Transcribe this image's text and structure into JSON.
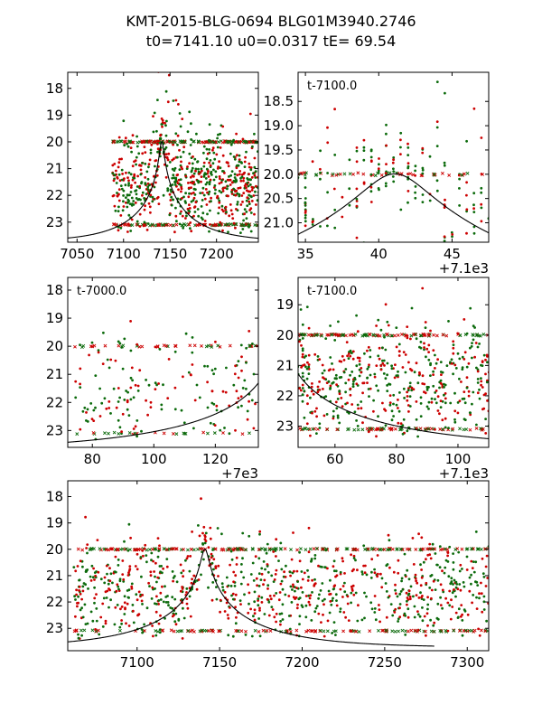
{
  "title": {
    "line1": "KMT-2015-BLG-0694 BLG01M3940.2746",
    "line2": "t0=7141.10 u0=0.0317 tE=  69.54"
  },
  "event": {
    "t0": 7141.1,
    "u0": 0.0317,
    "tE": 69.54,
    "base_mag": 23.74
  },
  "colors": {
    "red": "#cc0000",
    "green": "#0b6a0b",
    "model": "#000000"
  },
  "chart_data": [
    {
      "id": "panel-full-top",
      "type": "scatter",
      "xlim": [
        7040,
        7245
      ],
      "ylim": [
        23.75,
        17.4
      ],
      "xticks": [
        7050,
        7100,
        7150,
        7200
      ],
      "xtick_labels": [
        "7050",
        "7100",
        "7150",
        "7200"
      ],
      "yticks": [
        18,
        19,
        20,
        21,
        22,
        23
      ],
      "ytick_labels": [
        "18",
        "19",
        "20",
        "21",
        "22",
        "23"
      ],
      "annotation": "",
      "offset_label": "",
      "data_xrange": [
        7088,
        7245
      ],
      "peak_mag": 19.6,
      "n_points": 700
    },
    {
      "id": "panel-peak-zoom",
      "type": "scatter",
      "xlim": [
        34.5,
        47.5
      ],
      "ylim": [
        21.4,
        17.9
      ],
      "xticks": [
        35,
        40,
        45
      ],
      "xtick_labels": [
        "35",
        "40",
        "45"
      ],
      "yticks": [
        18.5,
        19.0,
        19.5,
        20.0,
        20.5,
        21.0
      ],
      "ytick_labels": [
        "18.5",
        "19.0",
        "19.5",
        "20.0",
        "20.5",
        "21.0"
      ],
      "annotation": "t-7100.0",
      "offset_label": "+7.1e3",
      "data_xrange": [
        34.5,
        47.5
      ],
      "peak_mag": 20.0,
      "n_points": 200
    },
    {
      "id": "panel-early",
      "type": "scatter",
      "xlim": [
        72,
        134
      ],
      "ylim": [
        23.6,
        17.55
      ],
      "xticks": [
        80,
        100,
        120
      ],
      "xtick_labels": [
        "80",
        "100",
        "120"
      ],
      "yticks": [
        18,
        19,
        20,
        21,
        22,
        23
      ],
      "ytick_labels": [
        "18",
        "19",
        "20",
        "21",
        "22",
        "23"
      ],
      "annotation": "t-7000.0",
      "offset_label": "+7e3",
      "data_xrange": [
        74,
        134
      ],
      "peak_mag": 21.4,
      "n_points": 170
    },
    {
      "id": "panel-late",
      "type": "scatter",
      "xlim": [
        48,
        110
      ],
      "ylim": [
        23.7,
        18.1
      ],
      "xticks": [
        60,
        80,
        100
      ],
      "xtick_labels": [
        "60",
        "80",
        "100"
      ],
      "yticks": [
        19,
        20,
        21,
        22,
        23
      ],
      "ytick_labels": [
        "19",
        "20",
        "21",
        "22",
        "23"
      ],
      "annotation": "t-7100.0",
      "offset_label": "+7.1e3",
      "data_xrange": [
        48,
        110
      ],
      "peak_mag": 20.9,
      "n_points": 500
    },
    {
      "id": "panel-full-bottom",
      "type": "scatter",
      "xlim": [
        7058,
        7313
      ],
      "ylim": [
        23.85,
        17.4
      ],
      "xticks": [
        7100,
        7150,
        7200,
        7250,
        7300
      ],
      "xtick_labels": [
        "7100",
        "7150",
        "7200",
        "7250",
        "7300"
      ],
      "yticks": [
        18,
        19,
        20,
        21,
        22,
        23
      ],
      "ytick_labels": [
        "18",
        "19",
        "20",
        "21",
        "22",
        "23"
      ],
      "annotation": "",
      "offset_label": "",
      "data_xrange": [
        7062,
        7313
      ],
      "model_xrange": [
        7058,
        7280
      ],
      "peak_mag": 19.6,
      "n_points": 900
    }
  ]
}
